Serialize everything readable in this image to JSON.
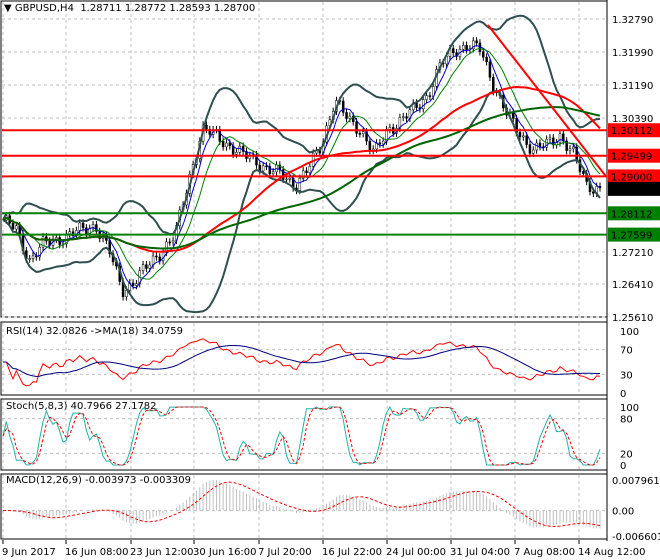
{
  "header": {
    "symbol": "GBPUSD,H4",
    "ohlc": "1.28711 1.28772 1.28593 1.28700"
  },
  "chart_data": {
    "type": "line",
    "title": "GBPUSD,H4",
    "price_axis": {
      "ylim": [
        1.2561,
        1.3319
      ],
      "ticks": [
        "1.32790",
        "1.31990",
        "1.31190",
        "1.30390",
        "1.27210",
        "1.26410",
        "1.25610"
      ]
    },
    "x_ticks": [
      "9 Jun 2017",
      "16 Jun 08:00",
      "23 Jun 12:00",
      "30 Jun 16:00",
      "7 Jul 20:00",
      "16 Jul 22:00",
      "24 Jul 00:00",
      "31 Jul 04:00",
      "7 Aug 08:00",
      "14 Aug 12:00"
    ],
    "close": [
      1.2795,
      1.2771,
      1.2699,
      1.2735,
      1.2747,
      1.276,
      1.2771,
      1.2783,
      1.272,
      1.2626,
      1.265,
      1.2687,
      1.2723,
      1.2759,
      1.2891,
      1.3012,
      1.3,
      1.2976,
      1.2952,
      1.294,
      1.2916,
      1.2904,
      1.288,
      1.2916,
      1.2976,
      1.3084,
      1.3036,
      1.3012,
      1.2952,
      1.3012,
      1.3036,
      1.306,
      1.3096,
      1.3168,
      1.3204,
      1.3216,
      1.3204,
      1.312,
      1.3048,
      1.3,
      1.2964,
      1.2976,
      1.3,
      1.2952,
      1.288,
      1.287
    ],
    "levels": [
      {
        "value": "1.30112",
        "color": "#ff0000"
      },
      {
        "value": "1.29499",
        "color": "#ff0000"
      },
      {
        "value": "1.29000",
        "color": "#ff0000"
      },
      {
        "value": "1.28112",
        "color": "#008000"
      },
      {
        "value": "1.27599",
        "color": "#008000"
      }
    ],
    "last_price": "1.28700",
    "trendline": {
      "from": [
        1.3265,
        "31 Jul"
      ],
      "to": [
        1.29,
        "14 Aug"
      ],
      "color": "#ff0000"
    },
    "rsi": {
      "label": "RSI(14) 32.0826  ->MA(18) 34.0759",
      "ticks": [
        "100",
        "70",
        "30",
        "0"
      ],
      "ylim": [
        0,
        100
      ]
    },
    "stoch": {
      "label": "Stoch(5,8,3) 40.7966 27.1782",
      "ticks": [
        "100",
        "80",
        "20",
        "0"
      ],
      "ylim": [
        0,
        100
      ]
    },
    "macd": {
      "label": "MACD(12,26,9) -0.003973 -0.003309",
      "ticks": [
        "0.007961",
        "0.00",
        "-0.006601"
      ],
      "ylim": [
        -0.006601,
        0.007961
      ]
    },
    "colors": {
      "rsi": "#ff0000",
      "rsi_ma": "#000080",
      "stoch_main": "#20b2aa",
      "stoch_signal": "#ff0000",
      "macd_hist": "#c0c0c0",
      "macd_signal": "#ff0000",
      "bands": "#2f4f4f",
      "ma_fast": "#ff0000",
      "ma_slow": "#006400"
    }
  }
}
